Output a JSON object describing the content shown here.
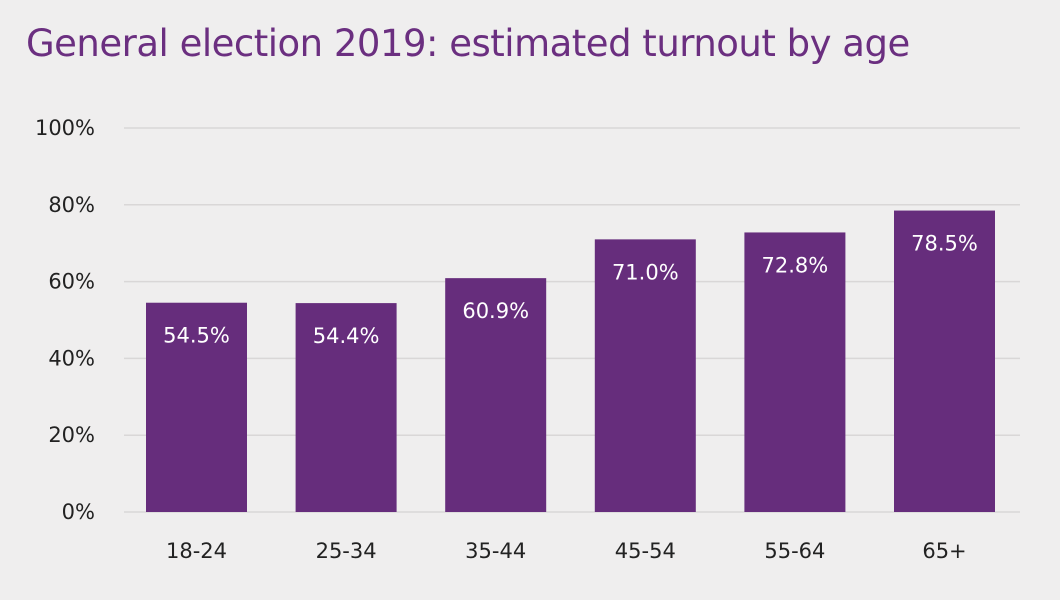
{
  "chart_data": {
    "type": "bar",
    "title": "General election 2019: estimated turnout by age",
    "categories": [
      "18-24",
      "25-34",
      "35-44",
      "45-54",
      "55-64",
      "65+"
    ],
    "values": [
      54.5,
      54.4,
      60.9,
      71.0,
      72.8,
      78.5
    ],
    "data_labels": [
      "54.5%",
      "54.4%",
      "60.9%",
      "71.0%",
      "72.8%",
      "78.5%"
    ],
    "y_ticks": [
      0,
      20,
      40,
      60,
      80,
      100
    ],
    "y_tick_labels": [
      "0%",
      "20%",
      "40%",
      "60%",
      "80%",
      "100%"
    ],
    "ylim": [
      0,
      100
    ],
    "xlabel": "",
    "ylabel": "",
    "grid": true,
    "legend": "none",
    "colors": {
      "bar": "#662d7c",
      "title": "#6b2f80",
      "background": "#efeeee"
    }
  }
}
